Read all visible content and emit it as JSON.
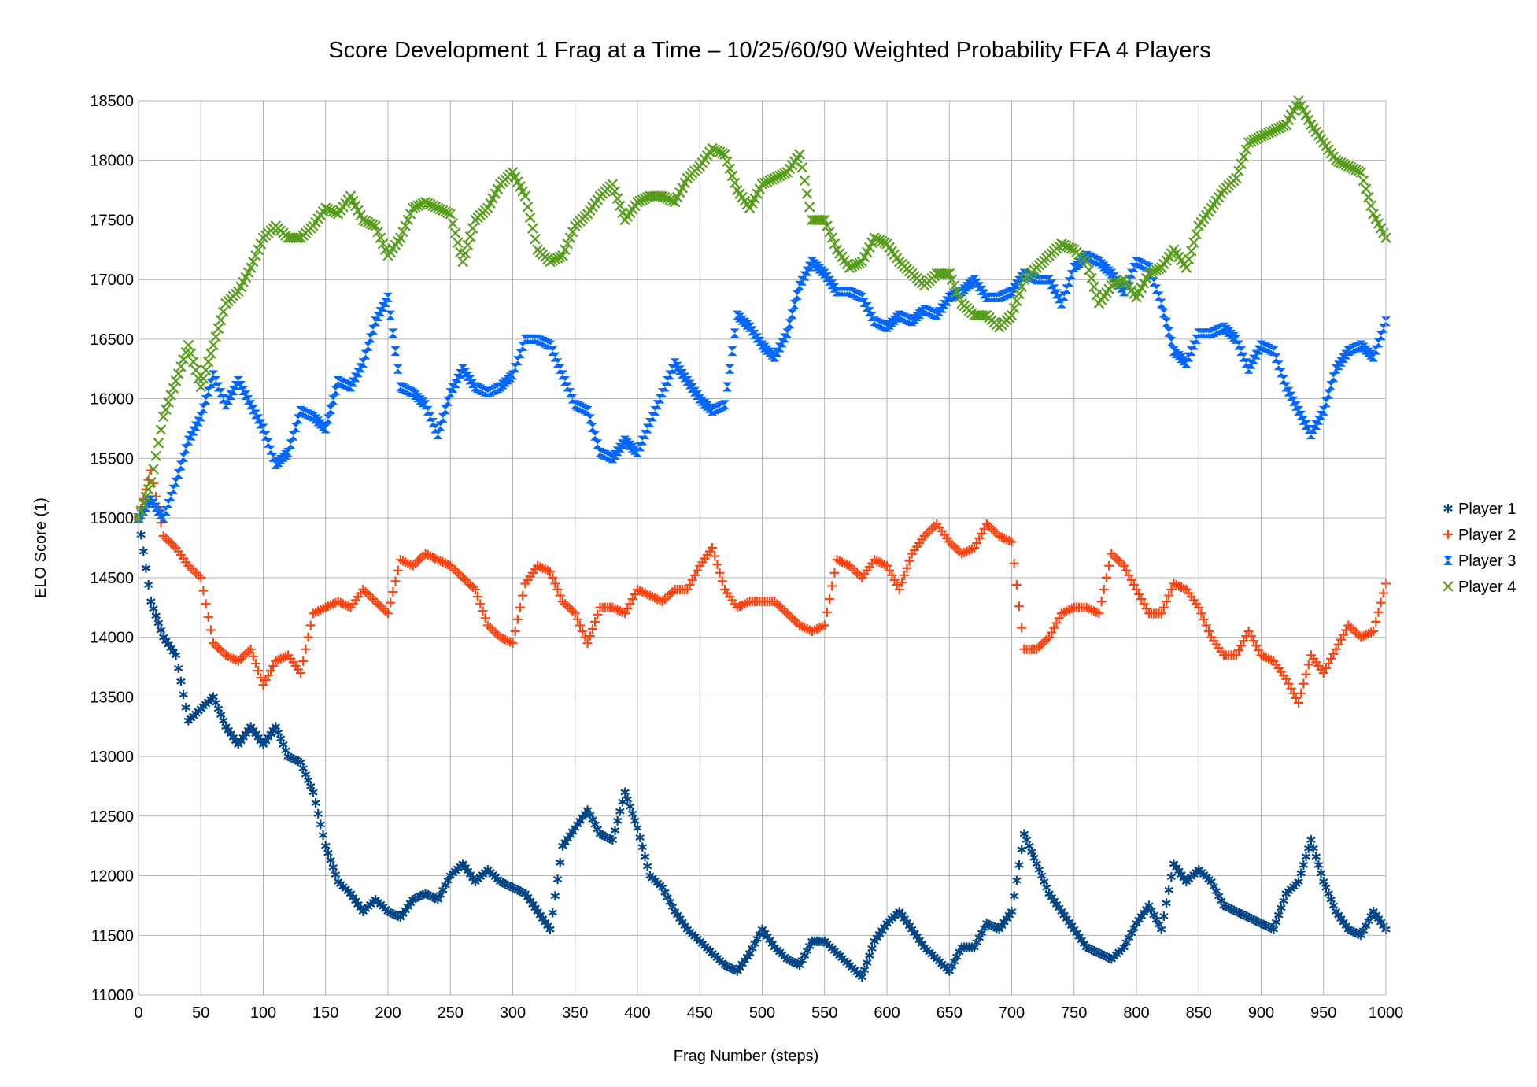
{
  "chart_data": {
    "type": "scatter",
    "title": "Score Development 1 Frag at a Time – 10/25/60/90 Weighted Probability FFA 4 Players",
    "xlabel": "Frag Number (steps)",
    "ylabel": "ELO Score (1)",
    "xlim": [
      0,
      1000
    ],
    "ylim": [
      11000,
      18500
    ],
    "x_ticks": [
      0,
      50,
      100,
      150,
      200,
      250,
      300,
      350,
      400,
      450,
      500,
      550,
      600,
      650,
      700,
      750,
      800,
      850,
      900,
      950,
      1000
    ],
    "y_ticks": [
      11000,
      11500,
      12000,
      12500,
      13000,
      13500,
      14000,
      14500,
      15000,
      15500,
      16000,
      16500,
      17000,
      17500,
      18000,
      18500
    ],
    "grid": true,
    "legend_position": "right",
    "series": [
      {
        "name": "Player 1",
        "marker": "asterisk",
        "color": "#004586",
        "x": [
          0,
          10,
          20,
          30,
          40,
          50,
          60,
          70,
          80,
          90,
          100,
          110,
          120,
          130,
          140,
          150,
          160,
          170,
          180,
          190,
          200,
          210,
          220,
          230,
          240,
          250,
          260,
          270,
          280,
          290,
          300,
          310,
          320,
          330,
          340,
          350,
          360,
          370,
          380,
          390,
          400,
          410,
          420,
          430,
          440,
          450,
          460,
          470,
          480,
          490,
          500,
          510,
          520,
          530,
          540,
          550,
          560,
          570,
          580,
          590,
          600,
          610,
          620,
          630,
          640,
          650,
          660,
          670,
          680,
          690,
          700,
          710,
          720,
          730,
          740,
          750,
          760,
          770,
          780,
          790,
          800,
          810,
          820,
          830,
          840,
          850,
          860,
          870,
          880,
          890,
          900,
          910,
          920,
          930,
          940,
          950,
          960,
          970,
          980,
          990,
          1000
        ],
        "y": [
          15000,
          14300,
          14000,
          13850,
          13300,
          13400,
          13500,
          13250,
          13100,
          13250,
          13100,
          13250,
          13000,
          12950,
          12700,
          12250,
          11950,
          11850,
          11700,
          11800,
          11700,
          11650,
          11800,
          11850,
          11800,
          12000,
          12100,
          11950,
          12050,
          11950,
          11900,
          11850,
          11700,
          11550,
          12250,
          12400,
          12550,
          12350,
          12300,
          12700,
          12400,
          12000,
          11900,
          11700,
          11550,
          11450,
          11350,
          11250,
          11200,
          11350,
          11550,
          11400,
          11300,
          11250,
          11450,
          11450,
          11350,
          11250,
          11150,
          11450,
          11600,
          11700,
          11550,
          11400,
          11300,
          11200,
          11400,
          11400,
          11600,
          11550,
          11700,
          12350,
          12100,
          11850,
          11700,
          11550,
          11400,
          11350,
          11300,
          11400,
          11600,
          11750,
          11550,
          12100,
          11950,
          12050,
          11950,
          11750,
          11700,
          11650,
          11600,
          11550,
          11850,
          11950,
          12300,
          11950,
          11700,
          11550,
          11500,
          11700,
          11550
        ]
      },
      {
        "name": "Player 2",
        "marker": "plus",
        "color": "#ff420e",
        "x": [
          0,
          10,
          20,
          30,
          40,
          50,
          60,
          70,
          80,
          90,
          100,
          110,
          120,
          130,
          140,
          150,
          160,
          170,
          180,
          190,
          200,
          210,
          220,
          230,
          240,
          250,
          260,
          270,
          280,
          290,
          300,
          310,
          320,
          330,
          340,
          350,
          360,
          370,
          380,
          390,
          400,
          410,
          420,
          430,
          440,
          450,
          460,
          470,
          480,
          490,
          500,
          510,
          520,
          530,
          540,
          550,
          560,
          570,
          580,
          590,
          600,
          610,
          620,
          630,
          640,
          650,
          660,
          670,
          680,
          690,
          700,
          710,
          720,
          730,
          740,
          750,
          760,
          770,
          780,
          790,
          800,
          810,
          820,
          830,
          840,
          850,
          860,
          870,
          880,
          890,
          900,
          910,
          920,
          930,
          940,
          950,
          960,
          970,
          980,
          990,
          1000
        ],
        "y": [
          15000,
          15400,
          14850,
          14750,
          14600,
          14500,
          13950,
          13850,
          13800,
          13900,
          13600,
          13800,
          13850,
          13700,
          14200,
          14250,
          14300,
          14250,
          14400,
          14300,
          14200,
          14650,
          14600,
          14700,
          14650,
          14600,
          14500,
          14400,
          14100,
          14000,
          13950,
          14450,
          14600,
          14550,
          14300,
          14200,
          13950,
          14250,
          14250,
          14200,
          14400,
          14350,
          14300,
          14400,
          14400,
          14600,
          14750,
          14400,
          14250,
          14300,
          14300,
          14300,
          14200,
          14100,
          14050,
          14100,
          14650,
          14600,
          14500,
          14650,
          14600,
          14400,
          14700,
          14850,
          14950,
          14800,
          14700,
          14750,
          14950,
          14850,
          14800,
          13900,
          13900,
          14000,
          14200,
          14250,
          14250,
          14200,
          14700,
          14600,
          14400,
          14200,
          14200,
          14450,
          14400,
          14250,
          14000,
          13850,
          13850,
          14050,
          13850,
          13800,
          13650,
          13450,
          13850,
          13700,
          13900,
          14100,
          14000,
          14050,
          14450
        ]
      },
      {
        "name": "Player 3",
        "marker": "hourglass",
        "color": "#0066ff",
        "x": [
          0,
          10,
          20,
          30,
          40,
          50,
          60,
          70,
          80,
          90,
          100,
          110,
          120,
          130,
          140,
          150,
          160,
          170,
          180,
          190,
          200,
          210,
          220,
          230,
          240,
          250,
          260,
          270,
          280,
          290,
          300,
          310,
          320,
          330,
          340,
          350,
          360,
          370,
          380,
          390,
          400,
          410,
          420,
          430,
          440,
          450,
          460,
          470,
          480,
          490,
          500,
          510,
          520,
          530,
          540,
          550,
          560,
          570,
          580,
          590,
          600,
          610,
          620,
          630,
          640,
          650,
          660,
          670,
          680,
          690,
          700,
          710,
          720,
          730,
          740,
          750,
          760,
          770,
          780,
          790,
          800,
          810,
          820,
          830,
          840,
          850,
          860,
          870,
          880,
          890,
          900,
          910,
          920,
          930,
          940,
          950,
          960,
          970,
          980,
          990,
          1000
        ],
        "y": [
          15000,
          15150,
          15000,
          15300,
          15650,
          15850,
          16200,
          15950,
          16150,
          15950,
          15750,
          15450,
          15550,
          15900,
          15850,
          15750,
          16150,
          16100,
          16300,
          16650,
          16850,
          16100,
          16050,
          15950,
          15700,
          16050,
          16250,
          16100,
          16050,
          16100,
          16200,
          16500,
          16500,
          16450,
          16200,
          15950,
          15900,
          15550,
          15500,
          15650,
          15550,
          15800,
          16050,
          16300,
          16150,
          16000,
          15900,
          15950,
          16700,
          16600,
          16450,
          16350,
          16550,
          16950,
          17150,
          17050,
          16900,
          16900,
          16850,
          16650,
          16600,
          16700,
          16650,
          16750,
          16700,
          16850,
          16900,
          17000,
          16850,
          16850,
          16900,
          17050,
          17000,
          17000,
          16800,
          17100,
          17200,
          17150,
          17050,
          16900,
          17150,
          17100,
          16800,
          16400,
          16300,
          16550,
          16550,
          16600,
          16500,
          16250,
          16450,
          16400,
          16100,
          15900,
          15700,
          15900,
          16250,
          16400,
          16450,
          16350,
          16650
        ]
      },
      {
        "name": "Player 4",
        "marker": "x",
        "color": "#579d1c",
        "x": [
          0,
          10,
          20,
          30,
          40,
          50,
          60,
          70,
          80,
          90,
          100,
          110,
          120,
          130,
          140,
          150,
          160,
          170,
          180,
          190,
          200,
          210,
          220,
          230,
          240,
          250,
          260,
          270,
          280,
          290,
          300,
          310,
          320,
          330,
          340,
          350,
          360,
          370,
          380,
          390,
          400,
          410,
          420,
          430,
          440,
          450,
          460,
          470,
          480,
          490,
          500,
          510,
          520,
          530,
          540,
          550,
          560,
          570,
          580,
          590,
          600,
          610,
          620,
          630,
          640,
          650,
          660,
          670,
          680,
          690,
          700,
          710,
          720,
          730,
          740,
          750,
          760,
          770,
          780,
          790,
          800,
          810,
          820,
          830,
          840,
          850,
          860,
          870,
          880,
          890,
          900,
          910,
          920,
          930,
          940,
          950,
          960,
          970,
          980,
          990,
          1000
        ],
        "y": [
          15000,
          15300,
          15850,
          16150,
          16450,
          16100,
          16450,
          16800,
          16900,
          17100,
          17350,
          17450,
          17350,
          17350,
          17450,
          17600,
          17550,
          17700,
          17500,
          17450,
          17200,
          17350,
          17600,
          17650,
          17600,
          17550,
          17150,
          17500,
          17600,
          17800,
          17900,
          17700,
          17250,
          17150,
          17200,
          17450,
          17550,
          17700,
          17800,
          17500,
          17650,
          17700,
          17700,
          17650,
          17850,
          17950,
          18100,
          18050,
          17750,
          17600,
          17800,
          17850,
          17900,
          18050,
          17500,
          17500,
          17250,
          17100,
          17150,
          17350,
          17300,
          17150,
          17050,
          16950,
          17050,
          17050,
          16800,
          16700,
          16700,
          16600,
          16700,
          17000,
          17100,
          17200,
          17300,
          17250,
          17150,
          16800,
          16950,
          17000,
          16850,
          17050,
          17100,
          17250,
          17100,
          17450,
          17600,
          17750,
          17850,
          18150,
          18200,
          18250,
          18300,
          18500,
          18300,
          18150,
          18000,
          17950,
          17900,
          17550,
          17350
        ]
      }
    ]
  }
}
